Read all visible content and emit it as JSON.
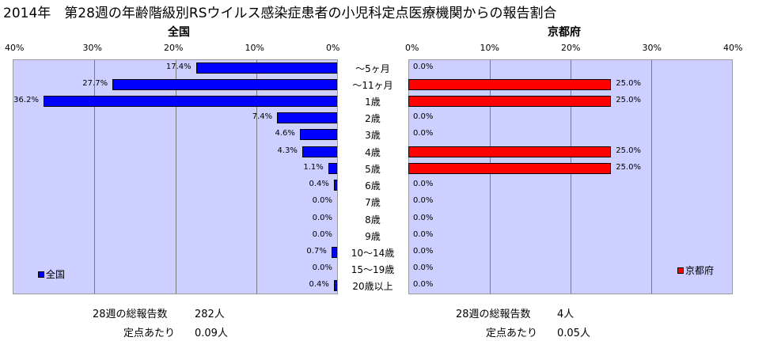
{
  "title": "2014年　第28週の年齢階級別RSウイルス感染症患者の小児科定点医療機関からの報告割合",
  "categories": [
    "〜5ヶ月",
    "〜11ヶ月",
    "1歳",
    "2歳",
    "3歳",
    "4歳",
    "5歳",
    "6歳",
    "7歳",
    "8歳",
    "9歳",
    "10〜14歳",
    "15〜19歳",
    "20歳以上"
  ],
  "chart_data": [
    {
      "type": "bar",
      "title": "全国",
      "orientation": "horizontal",
      "direction": "right-to-left",
      "xlim": [
        0,
        40
      ],
      "ticks": [
        "40%",
        "30%",
        "20%",
        "10%",
        "0%"
      ],
      "grid": true,
      "legend_position": "bottom-left",
      "series": [
        {
          "name": "全国",
          "color": "#0000ff",
          "values": [
            17.4,
            27.7,
            36.2,
            7.4,
            4.6,
            4.3,
            1.1,
            0.4,
            0.0,
            0.0,
            0.0,
            0.7,
            0.0,
            0.4
          ],
          "labels": [
            "17.4%",
            "27.7%",
            "36.2%",
            "7.4%",
            "4.6%",
            "4.3%",
            "1.1%",
            "0.4%",
            "0.0%",
            "0.0%",
            "0.0%",
            "0.7%",
            "0.0%",
            "0.4%"
          ]
        }
      ]
    },
    {
      "type": "bar",
      "title": "京都府",
      "orientation": "horizontal",
      "direction": "left-to-right",
      "xlim": [
        0,
        40
      ],
      "ticks": [
        "0%",
        "10%",
        "20%",
        "30%",
        "40%"
      ],
      "grid": true,
      "legend_position": "bottom-right",
      "series": [
        {
          "name": "京都府",
          "color": "#ff0000",
          "values": [
            0.0,
            25.0,
            25.0,
            0.0,
            0.0,
            25.0,
            25.0,
            0.0,
            0.0,
            0.0,
            0.0,
            0.0,
            0.0,
            0.0
          ],
          "labels": [
            "0.0%",
            "25.0%",
            "25.0%",
            "0.0%",
            "0.0%",
            "25.0%",
            "25.0%",
            "0.0%",
            "0.0%",
            "0.0%",
            "0.0%",
            "0.0%",
            "0.0%",
            "0.0%"
          ]
        }
      ]
    }
  ],
  "summary": {
    "national": {
      "total_label": "28週の総報告数",
      "total_value": "282人",
      "per_label": "定点あたり",
      "per_value": "0.09人"
    },
    "kyoto": {
      "total_label": "28週の総報告数",
      "total_value": "4人",
      "per_label": "定点あたり",
      "per_value": "0.05人"
    }
  }
}
